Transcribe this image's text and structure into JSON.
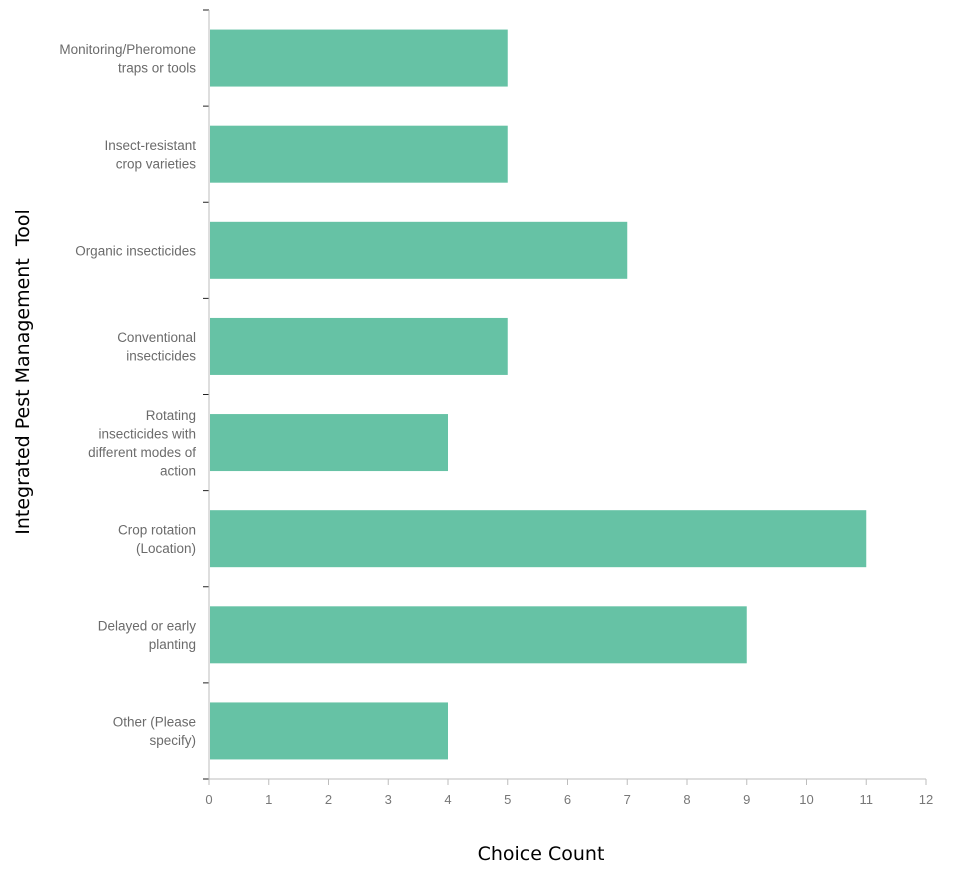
{
  "chart_data": {
    "type": "bar",
    "orientation": "horizontal",
    "categories": [
      [
        "Monitoring/Pheromone",
        "traps or tools"
      ],
      [
        "Insect-resistant",
        "crop varieties"
      ],
      [
        "Organic insecticides"
      ],
      [
        "Conventional",
        "insecticides"
      ],
      [
        "Rotating",
        "insecticides with",
        "different modes of",
        "action"
      ],
      [
        "Crop rotation",
        "(Location)"
      ],
      [
        "Delayed or early",
        "planting"
      ],
      [
        "Other (Please",
        "specify)"
      ]
    ],
    "values": [
      5,
      5,
      7,
      5,
      4,
      11,
      9,
      4
    ],
    "xlabel": "Choice Count",
    "ylabel": "Integrated Pest Management  Tool",
    "xlim": [
      0,
      12
    ],
    "xticks": [
      "0",
      "1",
      "2",
      "3",
      "4",
      "5",
      "6",
      "7",
      "8",
      "9",
      "10",
      "11",
      "12"
    ],
    "bar_color": "#66c2a5",
    "grid": false,
    "legend": "none"
  }
}
